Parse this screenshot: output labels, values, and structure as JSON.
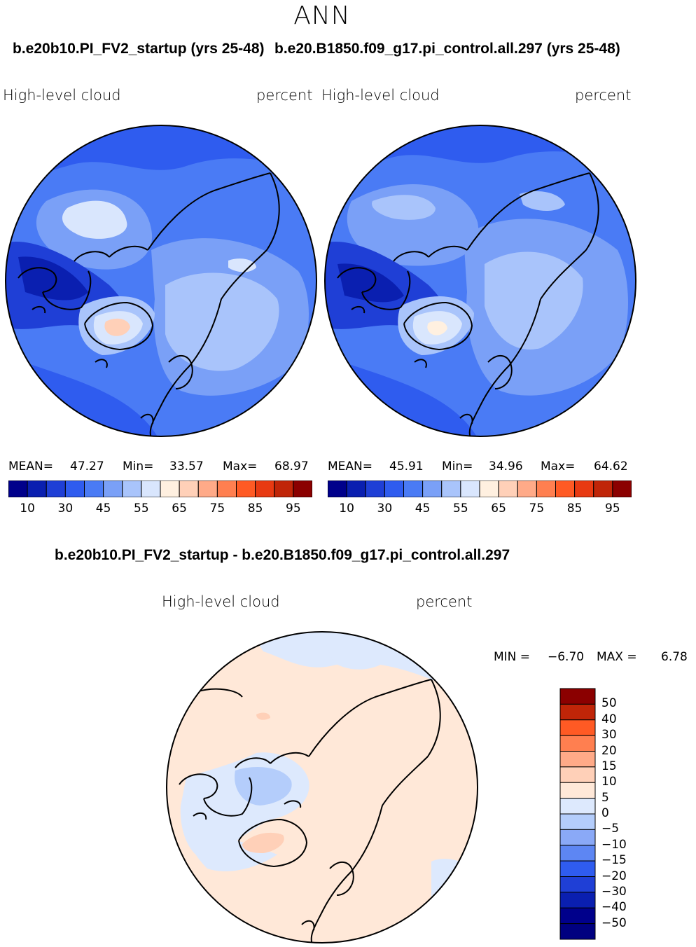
{
  "season": "ANN",
  "panels": [
    {
      "run_title": "b.e20b10.PI_FV2_startup (yrs 25-48)",
      "variable": "High-level cloud",
      "units": "percent",
      "mean_label": "MEAN=",
      "mean": "47.27",
      "min_label": "Min=",
      "min": "33.57",
      "max_label": "Max=",
      "max": "68.97"
    },
    {
      "run_title": "b.e20.B1850.f09_g17.pi_control.all.297 (yrs 25-48)",
      "variable": "High-level cloud",
      "units": "percent",
      "mean_label": "MEAN=",
      "mean": "45.91",
      "min_label": "Min=",
      "min": "34.96",
      "max_label": "Max=",
      "max": "64.62"
    }
  ],
  "colorbar_top": {
    "colors": [
      "#00008b",
      "#0a1fb0",
      "#1f3fd6",
      "#2f5cef",
      "#4a7bf5",
      "#7aa0f7",
      "#a9c4fb",
      "#d9e6fd",
      "#fff0e0",
      "#ffd0b8",
      "#ffaa88",
      "#ff7f50",
      "#ff5a24",
      "#e83a12",
      "#c02508",
      "#8b0000"
    ],
    "ticks": [
      "10",
      "30",
      "45",
      "55",
      "65",
      "75",
      "85",
      "95"
    ]
  },
  "diff": {
    "title": "b.e20b10.PI_FV2_startup - b.e20.B1850.f09_g17.pi_control.all.297",
    "variable": "High-level cloud",
    "units": "percent",
    "min_label": "MIN =",
    "min": "−6.70",
    "max_label": "MAX =",
    "max": "6.78"
  },
  "colorbar_diff": {
    "colors": [
      "#8b0000",
      "#c02508",
      "#ff5a24",
      "#ff7f50",
      "#ffaa88",
      "#ffd0b8",
      "#ffe8d8",
      "#dde9fd",
      "#b4cdfb",
      "#8aa9f7",
      "#5d86f3",
      "#2f5cef",
      "#1f3fd6",
      "#0a1fb0",
      "#00008b"
    ],
    "ticks": [
      "50",
      "40",
      "30",
      "20",
      "15",
      "10",
      "5",
      "0",
      "−5",
      "−10",
      "−15",
      "−20",
      "−30",
      "−40",
      "−50"
    ]
  },
  "icons": {
    "map_projection": "polar-stereographic-north-icon",
    "coastline": "coastline-icon"
  }
}
